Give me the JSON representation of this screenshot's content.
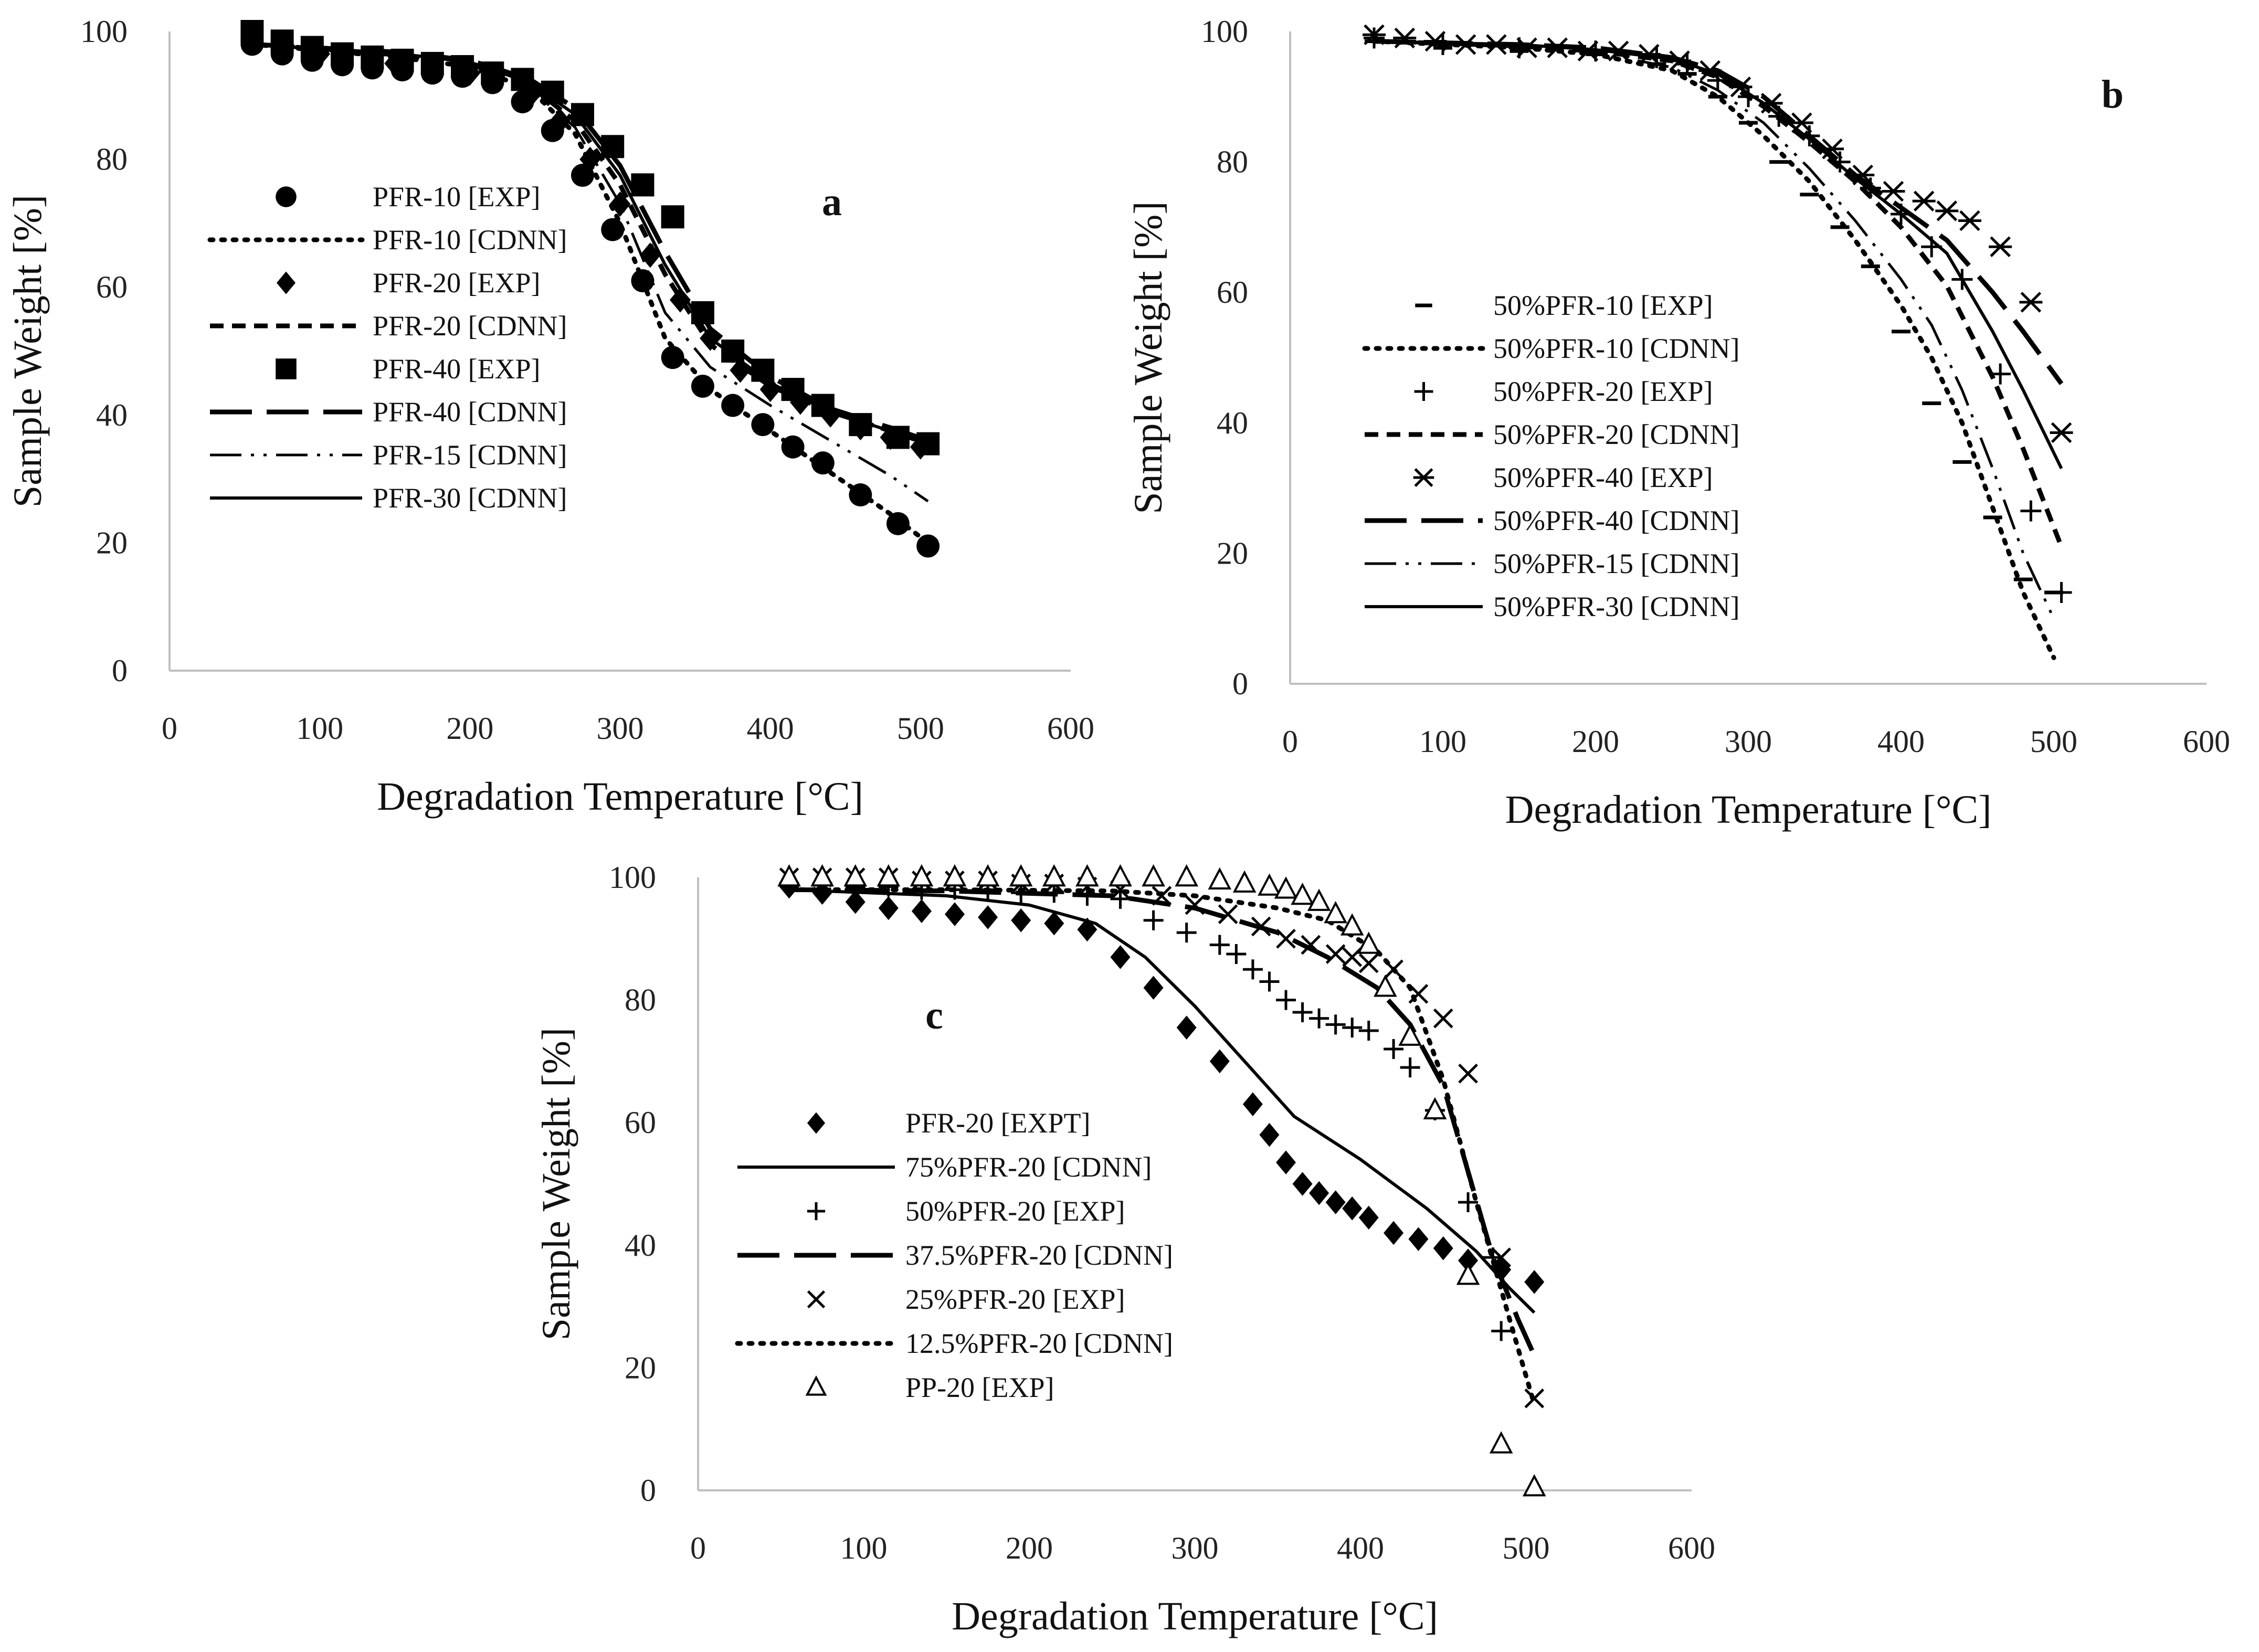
{
  "chart_data": [
    {
      "type": "line",
      "panel_label": "a",
      "xlabel": "Degradation Temperature [°C]",
      "ylabel": "Sample Weight [%]",
      "xlim": [
        0,
        600
      ],
      "ylim": [
        0,
        100
      ],
      "xticks": [
        "0",
        "100",
        "200",
        "300",
        "400",
        "500",
        "600"
      ],
      "yticks": [
        "0",
        "20",
        "40",
        "60",
        "80",
        "100"
      ],
      "legend_position": "middle-left",
      "series": [
        {
          "name": "PFR-10 [EXP]",
          "kind": "markers",
          "marker": "circle",
          "x": [
            55,
            75,
            95,
            115,
            135,
            155,
            175,
            195,
            215,
            235,
            255,
            275,
            295,
            315,
            335,
            355,
            375,
            395,
            415,
            435,
            460,
            485,
            505
          ],
          "y": [
            98,
            96.5,
            95.5,
            94.8,
            94.3,
            94,
            93.5,
            93,
            92,
            89,
            84.5,
            77.5,
            69,
            61,
            49,
            44.5,
            41.5,
            38.5,
            35,
            32.5,
            27.5,
            23,
            19.5
          ]
        },
        {
          "name": "PFR-10 [CDNN]",
          "kind": "line",
          "dash": "dotted",
          "x": [
            55,
            150,
            200,
            240,
            270,
            300,
            330,
            360,
            400,
            440,
            480,
            505
          ],
          "y": [
            98,
            96,
            94.5,
            91,
            84,
            70,
            52,
            44,
            37.5,
            31,
            24.5,
            20
          ]
        },
        {
          "name": "PFR-20 [EXP]",
          "kind": "markers",
          "marker": "diamond",
          "x": [
            55,
            100,
            150,
            200,
            240,
            260,
            280,
            300,
            320,
            340,
            360,
            380,
            400,
            420,
            440,
            460,
            480,
            500
          ],
          "y": [
            99,
            96.5,
            95,
            93.5,
            90,
            86,
            80,
            73,
            65,
            58,
            52,
            47,
            44,
            42,
            40,
            38,
            36.5,
            35
          ]
        },
        {
          "name": "PFR-20 [CDNN]",
          "kind": "line",
          "dash": "dashed",
          "x": [
            55,
            150,
            200,
            240,
            270,
            300,
            330,
            360,
            400,
            440,
            480,
            505
          ],
          "y": [
            98,
            96.5,
            95,
            91.5,
            86,
            76,
            62,
            51,
            44.5,
            40.5,
            37.5,
            35.5
          ]
        },
        {
          "name": "PFR-40 [EXP]",
          "kind": "markers",
          "marker": "square",
          "x": [
            55,
            75,
            95,
            115,
            135,
            155,
            175,
            195,
            215,
            235,
            255,
            275,
            295,
            315,
            335,
            355,
            375,
            395,
            415,
            435,
            460,
            485,
            505
          ],
          "y": [
            100,
            98.5,
            97.5,
            96.5,
            96,
            95.5,
            95,
            94.5,
            93.5,
            92.5,
            90.5,
            87,
            82,
            76,
            71,
            56,
            50,
            47,
            44,
            41.5,
            38.5,
            36.5,
            35.5
          ]
        },
        {
          "name": "PFR-40 [CDNN]",
          "kind": "line",
          "dash": "long-dash",
          "x": [
            55,
            150,
            200,
            240,
            270,
            300,
            330,
            360,
            400,
            440,
            480,
            505
          ],
          "y": [
            98,
            96.8,
            95.5,
            92.5,
            88,
            79,
            65.5,
            53.5,
            46,
            41,
            38,
            36
          ]
        },
        {
          "name": "PFR-15 [CDNN]",
          "kind": "line",
          "dash": "dash-dot-dot",
          "x": [
            55,
            150,
            200,
            240,
            270,
            300,
            330,
            360,
            400,
            440,
            480,
            505
          ],
          "y": [
            98,
            96.2,
            94.8,
            91,
            85,
            73,
            56,
            47.5,
            41.5,
            36,
            30.5,
            26.5
          ]
        },
        {
          "name": "PFR-30 [CDNN]",
          "kind": "line",
          "dash": "solid",
          "x": [
            55,
            150,
            200,
            240,
            270,
            300,
            330,
            360,
            400,
            440,
            480,
            505
          ],
          "y": [
            98,
            96.6,
            95.2,
            92,
            87,
            77.5,
            63.5,
            52,
            45,
            40.5,
            37.5,
            35.5
          ]
        }
      ]
    },
    {
      "type": "line",
      "panel_label": "b",
      "xlabel": "Degradation Temperature [°C]",
      "ylabel": "Sample Weight [%]",
      "xlim": [
        0,
        600
      ],
      "ylim": [
        0,
        100
      ],
      "xticks": [
        "0",
        "100",
        "200",
        "300",
        "400",
        "500",
        "600"
      ],
      "yticks": [
        "0",
        "20",
        "40",
        "60",
        "80",
        "100"
      ],
      "legend_position": "middle-left",
      "series": [
        {
          "name": "50%PFR-10 [EXP]",
          "kind": "markers",
          "marker": "dash",
          "x": [
            55,
            100,
            150,
            200,
            240,
            260,
            280,
            300,
            320,
            340,
            360,
            380,
            400,
            420,
            440,
            460,
            480,
            500
          ],
          "y": [
            98.5,
            97.5,
            97,
            96.5,
            95,
            93.5,
            90,
            86,
            80,
            75,
            70,
            64,
            54,
            43,
            34,
            25.5,
            16,
            14
          ]
        },
        {
          "name": "50%PFR-10 [CDNN]",
          "kind": "line",
          "dash": "dotted",
          "x": [
            55,
            150,
            200,
            250,
            280,
            310,
            340,
            370,
            400,
            420,
            440,
            460,
            480,
            500
          ],
          "y": [
            98.5,
            97.5,
            96.5,
            94,
            90,
            84,
            77,
            68,
            58,
            50,
            40,
            27,
            14,
            4
          ]
        },
        {
          "name": "50%PFR-20 [EXP]",
          "kind": "markers",
          "marker": "plus",
          "x": [
            55,
            100,
            150,
            200,
            240,
            260,
            280,
            300,
            320,
            340,
            360,
            380,
            400,
            420,
            440,
            465,
            485,
            505
          ],
          "y": [
            99,
            98,
            97.5,
            97,
            96,
            95,
            92.5,
            90,
            87,
            84,
            80,
            76,
            72,
            67,
            62,
            47.5,
            26.5,
            14
          ]
        },
        {
          "name": "50%PFR-20 [CDNN]",
          "kind": "line",
          "dash": "dashed",
          "x": [
            55,
            150,
            200,
            250,
            280,
            310,
            340,
            370,
            400,
            430,
            460,
            480,
            505
          ],
          "y": [
            98.5,
            97.8,
            97,
            95.5,
            93,
            88.5,
            83,
            77,
            70,
            61,
            47,
            36,
            21
          ]
        },
        {
          "name": "50%PFR-40 [EXP]",
          "kind": "markers",
          "marker": "asterisk",
          "x": [
            55,
            75,
            95,
            115,
            135,
            155,
            175,
            195,
            215,
            235,
            255,
            275,
            295,
            315,
            335,
            355,
            375,
            395,
            415,
            430,
            445,
            465,
            485,
            505
          ],
          "y": [
            99.5,
            99,
            98.5,
            98,
            98,
            97.5,
            97.5,
            97,
            97,
            96.5,
            95.5,
            94,
            91.5,
            89,
            86,
            82,
            78,
            75.5,
            74,
            72.5,
            71,
            67,
            58.5,
            38.5
          ]
        },
        {
          "name": "50%PFR-40 [CDNN]",
          "kind": "line",
          "dash": "long-dash",
          "x": [
            55,
            150,
            200,
            250,
            280,
            310,
            340,
            370,
            400,
            430,
            460,
            480,
            505
          ],
          "y": [
            98.5,
            98,
            97.5,
            96,
            94,
            90,
            84,
            78,
            73,
            68,
            60,
            54,
            46
          ]
        },
        {
          "name": "50%PFR-15 [CDNN]",
          "kind": "line",
          "dash": "dash-dot-dot",
          "x": [
            55,
            150,
            200,
            250,
            280,
            310,
            340,
            370,
            400,
            420,
            440,
            460,
            480,
            500
          ],
          "y": [
            98.5,
            97.6,
            96.8,
            94.5,
            91,
            86,
            79,
            71,
            62,
            55,
            45,
            33,
            20,
            10
          ]
        },
        {
          "name": "50%PFR-30 [CDNN]",
          "kind": "line",
          "dash": "solid",
          "x": [
            55,
            150,
            200,
            250,
            280,
            310,
            340,
            370,
            400,
            430,
            460,
            480,
            505
          ],
          "y": [
            98.5,
            98,
            97.2,
            95.8,
            93.5,
            89,
            83.5,
            77.5,
            72,
            66,
            54,
            45,
            33
          ]
        }
      ]
    },
    {
      "type": "line",
      "panel_label": "c",
      "xlabel": "Degradation Temperature [°C]",
      "ylabel": "Sample Weight [%]",
      "xlim": [
        0,
        600
      ],
      "ylim": [
        0,
        100
      ],
      "xticks": [
        "0",
        "100",
        "200",
        "300",
        "400",
        "500",
        "600"
      ],
      "yticks": [
        "0",
        "20",
        "40",
        "60",
        "80",
        "100"
      ],
      "legend_position": "lower-left",
      "series": [
        {
          "name": "PFR-20 [EXPT]",
          "kind": "markers",
          "marker": "diamond",
          "x": [
            55,
            75,
            95,
            115,
            135,
            155,
            175,
            195,
            215,
            235,
            255,
            275,
            295,
            315,
            335,
            345,
            355,
            365,
            375,
            385,
            395,
            405,
            420,
            435,
            450,
            465,
            485,
            505
          ],
          "y": [
            98.5,
            97.5,
            96,
            95,
            94.5,
            94,
            93.5,
            93,
            92.5,
            91.5,
            87,
            82,
            75.5,
            70,
            63,
            58,
            53.5,
            50,
            48.5,
            47,
            46,
            44.5,
            42,
            41,
            39.5,
            37.5,
            36,
            34
          ]
        },
        {
          "name": "75%PFR-20 [CDNN]",
          "kind": "line",
          "dash": "solid",
          "x": [
            55,
            150,
            200,
            240,
            270,
            300,
            330,
            360,
            400,
            440,
            470,
            490,
            505
          ],
          "y": [
            98,
            97,
            95.5,
            92.5,
            87,
            79,
            70,
            61,
            54,
            46,
            39,
            33,
            29
          ]
        },
        {
          "name": "50%PFR-20 [EXP]",
          "kind": "markers",
          "marker": "plus",
          "x": [
            55,
            75,
            95,
            115,
            135,
            155,
            175,
            195,
            215,
            235,
            255,
            275,
            295,
            315,
            325,
            335,
            345,
            355,
            365,
            375,
            385,
            395,
            405,
            420,
            430,
            445,
            465,
            480,
            485
          ],
          "y": [
            99,
            99,
            98.5,
            98.5,
            98,
            98,
            98,
            97.5,
            97.5,
            97,
            96.5,
            93,
            91,
            89,
            87.5,
            85,
            83,
            80,
            78,
            77,
            76,
            75.5,
            75,
            72,
            69,
            62,
            47,
            38,
            26
          ]
        },
        {
          "name": "37.5%PFR-20 [CDNN]",
          "kind": "line",
          "dash": "long-dash",
          "x": [
            55,
            150,
            250,
            300,
            350,
            380,
            410,
            430,
            450,
            465,
            480,
            495,
            505
          ],
          "y": [
            98,
            97.8,
            97,
            95,
            91,
            87,
            82,
            76,
            66,
            52,
            38,
            28,
            22
          ]
        },
        {
          "name": "25%PFR-20 [EXP]",
          "kind": "markers",
          "marker": "x",
          "x": [
            55,
            75,
            95,
            115,
            135,
            155,
            175,
            195,
            215,
            235,
            255,
            280,
            300,
            320,
            340,
            355,
            370,
            385,
            395,
            405,
            420,
            435,
            450,
            465,
            485,
            505
          ],
          "y": [
            100,
            100,
            100,
            100,
            99.5,
            99.5,
            99.5,
            99,
            99,
            98.5,
            98,
            97,
            95.5,
            94,
            92,
            90,
            89,
            87.5,
            87,
            86,
            85,
            81,
            77,
            68,
            38,
            15
          ]
        },
        {
          "name": "12.5%PFR-20 [CDNN]",
          "kind": "line",
          "dash": "dotted",
          "x": [
            55,
            150,
            250,
            300,
            350,
            380,
            410,
            430,
            450,
            470,
            490,
            505
          ],
          "y": [
            98,
            98,
            97.8,
            97,
            95,
            93,
            88,
            82,
            67,
            47,
            28,
            14
          ]
        },
        {
          "name": "PP-20 [EXP]",
          "kind": "markers",
          "marker": "triangle",
          "x": [
            55,
            75,
            95,
            115,
            135,
            155,
            175,
            195,
            215,
            235,
            255,
            275,
            295,
            315,
            330,
            345,
            355,
            365,
            375,
            385,
            395,
            405,
            415,
            430,
            445,
            465,
            485,
            505
          ],
          "y": [
            100,
            100,
            100,
            100,
            100,
            100,
            100,
            100,
            100,
            100,
            100,
            100,
            100,
            99.5,
            99,
            98.5,
            98,
            97,
            96,
            94,
            92,
            89,
            82,
            74,
            62,
            35,
            7.5,
            0.5
          ]
        }
      ]
    }
  ]
}
